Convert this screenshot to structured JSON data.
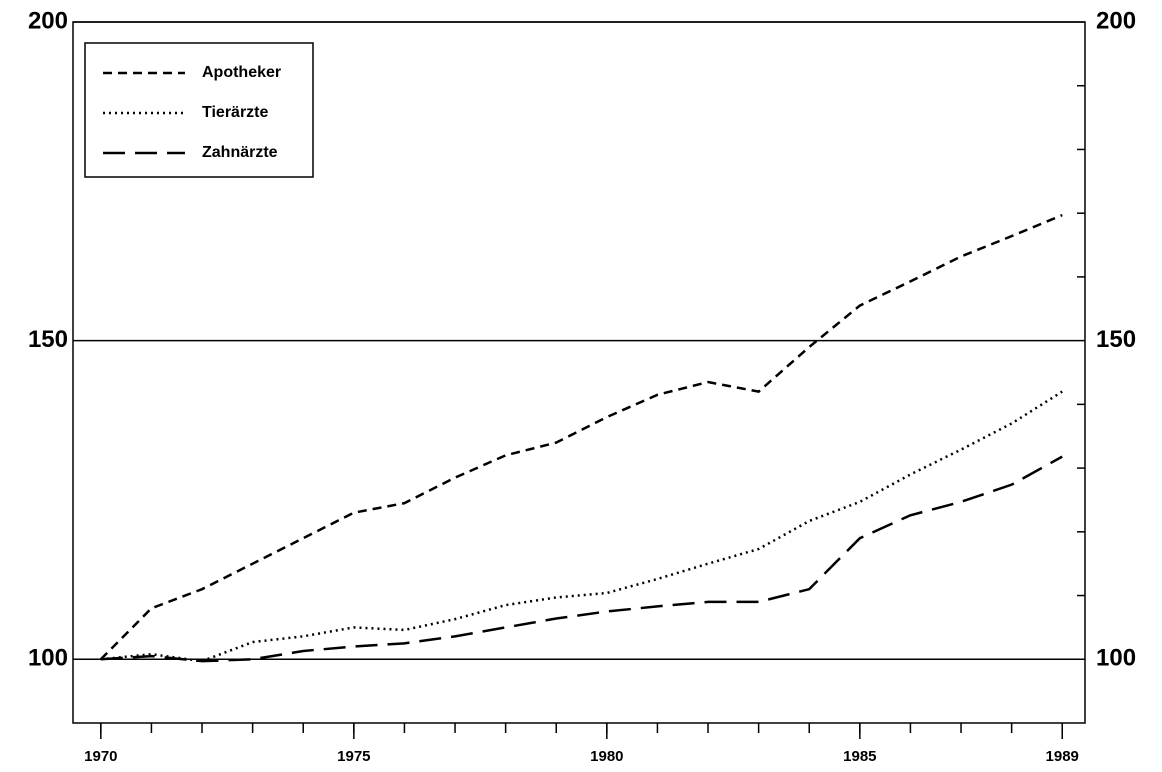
{
  "chart_data": {
    "type": "line",
    "x": [
      1970,
      1971,
      1972,
      1973,
      1974,
      1975,
      1976,
      1977,
      1978,
      1979,
      1980,
      1981,
      1982,
      1983,
      1984,
      1985,
      1986,
      1987,
      1988,
      1989
    ],
    "series": [
      {
        "name": "Apotheker",
        "color": "#000000",
        "dash": "dashed",
        "values": [
          100,
          108,
          111,
          115,
          119,
          123,
          124.5,
          128.5,
          132,
          134,
          138,
          141.5,
          143.5,
          142,
          149,
          155.5,
          159.3,
          163.2,
          166.4,
          169.7
        ]
      },
      {
        "name": "Tierärzte",
        "color": "#000000",
        "dash": "dotted",
        "values": [
          100,
          100.8,
          99.7,
          102.7,
          103.6,
          105,
          104.6,
          106.3,
          108.5,
          109.7,
          110.4,
          112.6,
          115,
          117.3,
          121.7,
          124.7,
          129,
          132.9,
          137,
          142
        ]
      },
      {
        "name": "Zahnärzte",
        "color": "#000000",
        "dash": "long-dashed",
        "values": [
          100,
          100.5,
          99.7,
          100,
          101.3,
          102,
          102.5,
          103.6,
          105,
          106.4,
          107.5,
          108.3,
          109,
          109,
          111,
          119,
          122.6,
          124.7,
          127.4,
          131.8
        ]
      }
    ],
    "xlim": [
      1969.45,
      1989.45
    ],
    "xticks": [
      1970,
      1975,
      1980,
      1985,
      1989
    ],
    "ylim": [
      90,
      200
    ],
    "yticks": [
      100,
      150,
      200
    ],
    "yminorticks": [
      110,
      120,
      130,
      140,
      160,
      170,
      180,
      190
    ],
    "grid": true,
    "legend": "upper left"
  }
}
